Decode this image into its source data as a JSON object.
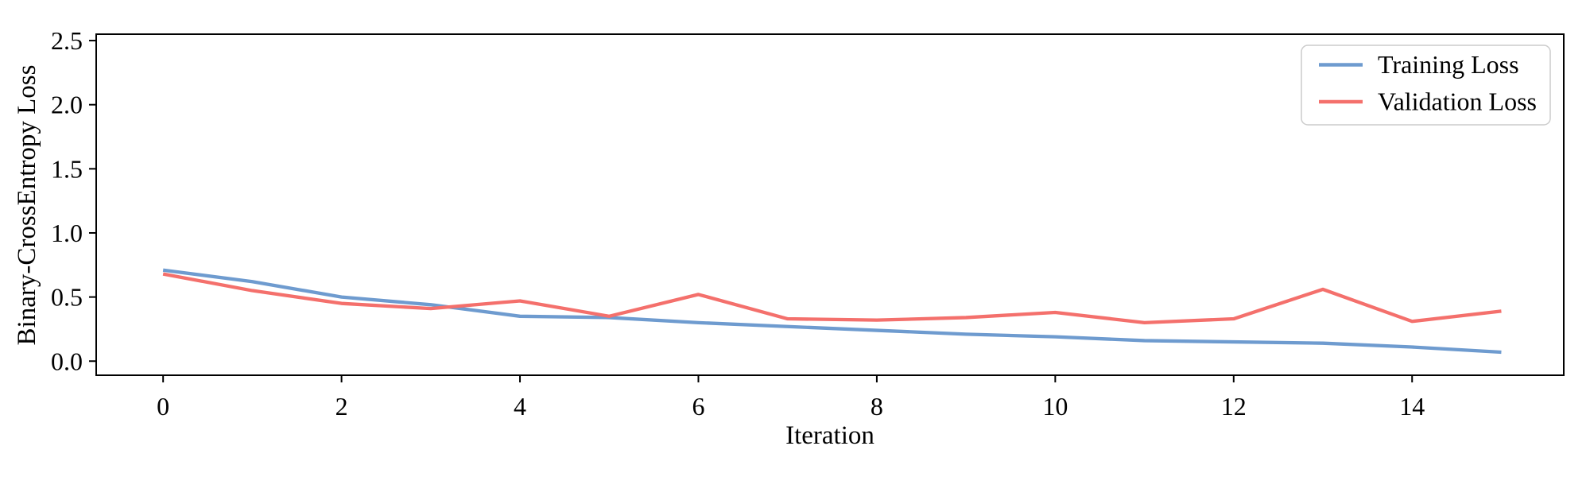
{
  "figure": {
    "background": "#ffffff",
    "text_color": "#000000",
    "spine_color": "#000000"
  },
  "chart_data": {
    "type": "line",
    "title": "",
    "xlabel": "Iteration",
    "ylabel": "Binary-CrossEntropy Loss",
    "x": [
      0,
      1,
      2,
      3,
      4,
      5,
      6,
      7,
      8,
      9,
      10,
      11,
      12,
      13,
      14,
      15
    ],
    "series": [
      {
        "name": "Training Loss",
        "color": "#6E9BCF",
        "values": [
          0.71,
          0.62,
          0.5,
          0.44,
          0.35,
          0.34,
          0.3,
          0.27,
          0.24,
          0.21,
          0.19,
          0.16,
          0.15,
          0.14,
          0.11,
          0.07
        ]
      },
      {
        "name": "Validation Loss",
        "color": "#F4706C",
        "values": [
          0.68,
          0.55,
          0.45,
          0.41,
          0.47,
          0.35,
          0.52,
          0.33,
          0.32,
          0.34,
          0.38,
          0.3,
          0.33,
          0.56,
          0.31,
          0.39
        ]
      }
    ],
    "xticks": [
      {
        "value": 0,
        "label": "0"
      },
      {
        "value": 2,
        "label": "2"
      },
      {
        "value": 4,
        "label": "4"
      },
      {
        "value": 6,
        "label": "6"
      },
      {
        "value": 8,
        "label": "8"
      },
      {
        "value": 10,
        "label": "10"
      },
      {
        "value": 12,
        "label": "12"
      },
      {
        "value": 14,
        "label": "14"
      }
    ],
    "yticks": [
      {
        "value": 0.0,
        "label": "0.0"
      },
      {
        "value": 0.5,
        "label": "0.5"
      },
      {
        "value": 1.0,
        "label": "1.0"
      },
      {
        "value": 1.5,
        "label": "1.5"
      },
      {
        "value": 2.0,
        "label": "2.0"
      },
      {
        "value": 2.5,
        "label": "2.5"
      }
    ],
    "xlim": [
      -0.75,
      15.7
    ],
    "ylim": [
      -0.11,
      2.55
    ],
    "grid": false,
    "legend_position": "upper right",
    "legend_border_color": "#cccccc",
    "legend_background": "#ffffff"
  }
}
